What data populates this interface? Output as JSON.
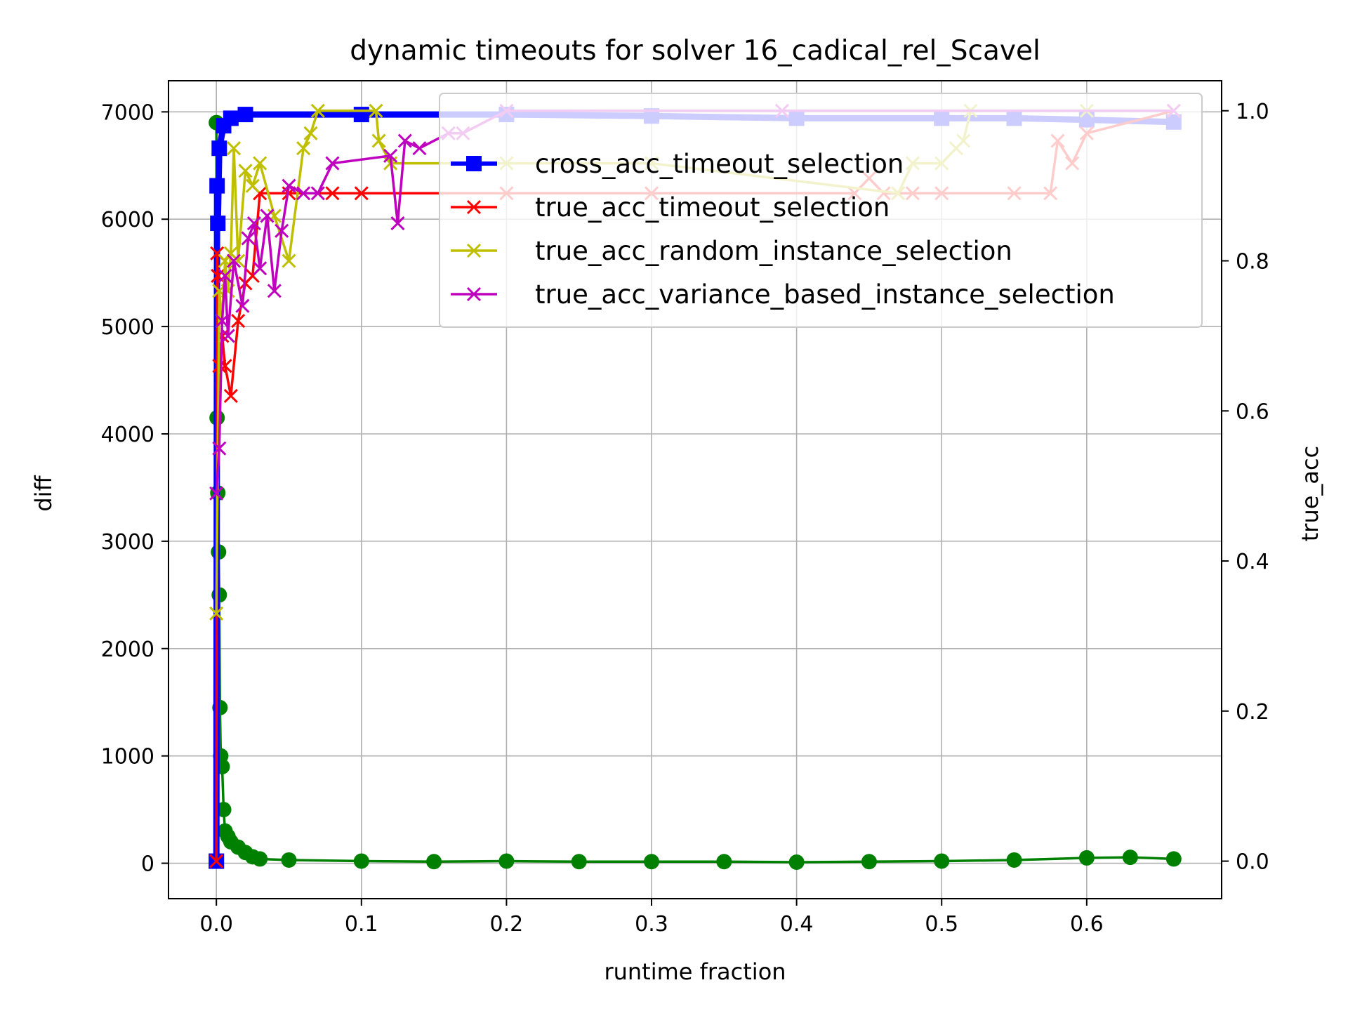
{
  "chart_data": {
    "type": "line",
    "title": "dynamic timeouts for solver 16_cadical_rel_Scavel",
    "xlabel": "runtime fraction",
    "ylabel_left": "diff",
    "ylabel_right": "true_acc",
    "ylabel_left_color": "#008000",
    "ylabel_right_color": "#ff0000",
    "xlim": [
      -0.033,
      0.693
    ],
    "ylim_left": [
      -330,
      7290
    ],
    "ylim_right": [
      -0.05,
      1.04
    ],
    "x_ticks": [
      "0.0",
      "0.1",
      "0.2",
      "0.3",
      "0.4",
      "0.5",
      "0.6"
    ],
    "y_left_ticks": [
      "0",
      "1000",
      "2000",
      "3000",
      "4000",
      "5000",
      "6000",
      "7000"
    ],
    "y_right_ticks": [
      "0.0",
      "0.2",
      "0.4",
      "0.6",
      "0.8",
      "1.0"
    ],
    "grid": true,
    "legend_placement": "upper right",
    "series": [
      {
        "name": "diff",
        "axis": "left",
        "color": "#008000",
        "marker": "circle",
        "x": [
          0.0,
          0.0005,
          0.001,
          0.0015,
          0.002,
          0.0025,
          0.003,
          0.004,
          0.005,
          0.006,
          0.008,
          0.01,
          0.015,
          0.02,
          0.025,
          0.03,
          0.05,
          0.1,
          0.15,
          0.2,
          0.25,
          0.3,
          0.35,
          0.4,
          0.45,
          0.5,
          0.55,
          0.6,
          0.63,
          0.66
        ],
        "values": [
          6900,
          4150,
          3450,
          2900,
          2500,
          1450,
          1000,
          900,
          500,
          300,
          250,
          200,
          150,
          100,
          60,
          40,
          30,
          20,
          15,
          20,
          15,
          15,
          15,
          10,
          15,
          20,
          30,
          50,
          55,
          40
        ]
      },
      {
        "name": "cross_acc_timeout_selection",
        "axis": "right",
        "color": "#0000ff",
        "marker": "square",
        "x": [
          0.0,
          0.0005,
          0.001,
          0.002,
          0.005,
          0.01,
          0.02,
          0.1,
          0.2,
          0.3,
          0.4,
          0.5,
          0.55,
          0.6,
          0.66
        ],
        "values": [
          0.0,
          0.9,
          0.85,
          0.95,
          0.98,
          0.99,
          0.995,
          0.995,
          0.995,
          0.993,
          0.99,
          0.99,
          0.99,
          0.988,
          0.985
        ]
      },
      {
        "name": "true_acc_timeout_selection",
        "axis": "right",
        "color": "#ff0000",
        "marker": "x",
        "x": [
          0.0,
          0.0005,
          0.001,
          0.002,
          0.004,
          0.006,
          0.01,
          0.015,
          0.02,
          0.025,
          0.03,
          0.05,
          0.08,
          0.1,
          0.2,
          0.3,
          0.44,
          0.45,
          0.46,
          0.47,
          0.48,
          0.5,
          0.55,
          0.575,
          0.58,
          0.59,
          0.6,
          0.66
        ],
        "values": [
          0.0,
          0.81,
          0.78,
          0.66,
          0.7,
          0.66,
          0.62,
          0.72,
          0.77,
          0.78,
          0.89,
          0.89,
          0.89,
          0.89,
          0.89,
          0.89,
          0.89,
          0.91,
          0.89,
          0.89,
          0.89,
          0.89,
          0.89,
          0.89,
          0.96,
          0.93,
          0.97,
          1.0
        ]
      },
      {
        "name": "true_acc_random_instance_selection",
        "axis": "right",
        "color": "#bfbf00",
        "marker": "x",
        "x": [
          0.0,
          0.002,
          0.004,
          0.006,
          0.008,
          0.01,
          0.012,
          0.015,
          0.02,
          0.025,
          0.03,
          0.04,
          0.05,
          0.06,
          0.065,
          0.07,
          0.11,
          0.112,
          0.12,
          0.2,
          0.3,
          0.47,
          0.48,
          0.5,
          0.51,
          0.515,
          0.52,
          0.6,
          0.66
        ],
        "values": [
          0.33,
          0.76,
          0.72,
          0.8,
          0.76,
          0.81,
          0.95,
          0.8,
          0.92,
          0.9,
          0.93,
          0.86,
          0.8,
          0.95,
          0.97,
          1.0,
          1.0,
          0.96,
          0.93,
          0.93,
          0.93,
          0.89,
          0.93,
          0.93,
          0.95,
          0.96,
          1.0,
          1.0,
          1.0
        ]
      },
      {
        "name": "true_acc_variance_based_instance_selection",
        "axis": "right",
        "color": "#bf00bf",
        "marker": "x",
        "x": [
          0.0,
          0.002,
          0.004,
          0.006,
          0.008,
          0.012,
          0.018,
          0.022,
          0.026,
          0.03,
          0.035,
          0.04,
          0.045,
          0.05,
          0.06,
          0.07,
          0.08,
          0.12,
          0.125,
          0.13,
          0.14,
          0.16,
          0.17,
          0.2,
          0.39,
          0.66
        ],
        "values": [
          0.49,
          0.55,
          0.72,
          0.78,
          0.7,
          0.8,
          0.74,
          0.83,
          0.85,
          0.79,
          0.86,
          0.76,
          0.84,
          0.9,
          0.89,
          0.89,
          0.93,
          0.94,
          0.85,
          0.96,
          0.95,
          0.97,
          0.97,
          1.0,
          1.0,
          1.0
        ]
      }
    ],
    "legend_entries": [
      {
        "label": "cross_acc_timeout_selection",
        "color": "#0000ff",
        "marker": "square"
      },
      {
        "label": "true_acc_timeout_selection",
        "color": "#ff0000",
        "marker": "x"
      },
      {
        "label": "true_acc_random_instance_selection",
        "color": "#bfbf00",
        "marker": "x"
      },
      {
        "label": "true_acc_variance_based_instance_selection",
        "color": "#bf00bf",
        "marker": "x"
      }
    ]
  }
}
